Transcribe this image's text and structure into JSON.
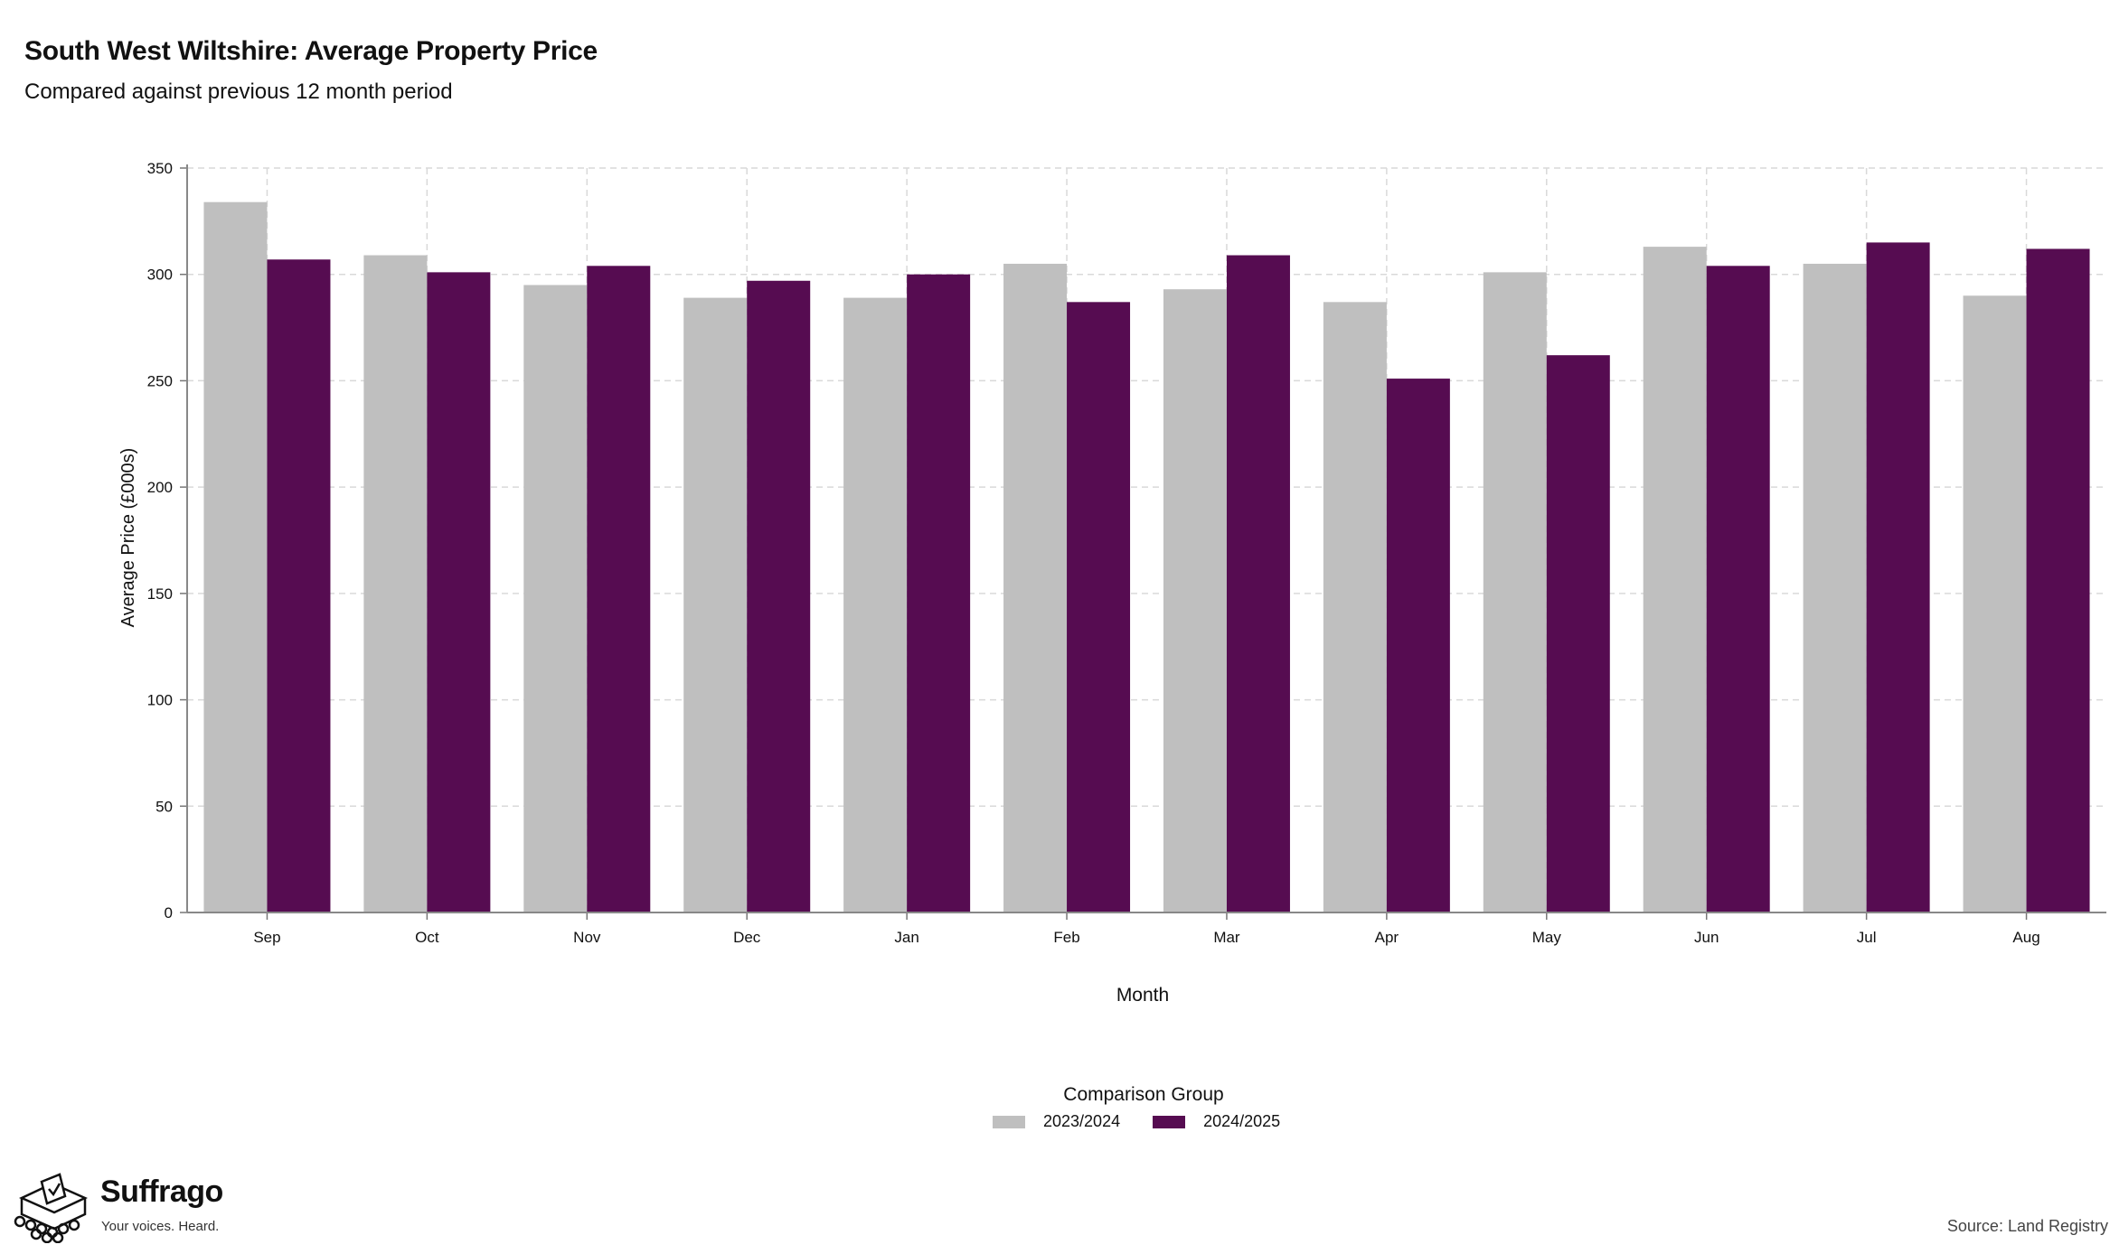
{
  "header": {
    "title": "South West Wiltshire: Average Property Price",
    "subtitle": "Compared against previous 12 month period"
  },
  "chart_data": {
    "type": "bar",
    "categories": [
      "Sep",
      "Oct",
      "Nov",
      "Dec",
      "Jan",
      "Feb",
      "Mar",
      "Apr",
      "May",
      "Jun",
      "Jul",
      "Aug"
    ],
    "series": [
      {
        "name": "2023/2024",
        "color": "#bfbfbf",
        "values": [
          334,
          309,
          295,
          289,
          289,
          305,
          293,
          287,
          301,
          313,
          305,
          290
        ]
      },
      {
        "name": "2024/2025",
        "color": "#560c51",
        "values": [
          307,
          301,
          304,
          297,
          300,
          287,
          309,
          251,
          262,
          304,
          315,
          312
        ]
      }
    ],
    "xlabel": "Month",
    "ylabel": "Average Price (£000s)",
    "ylim": [
      0,
      350
    ],
    "yticks": [
      0,
      50,
      100,
      150,
      200,
      250,
      300,
      350
    ],
    "grid": true,
    "legend_position": "bottom",
    "legend_title": "Comparison Group"
  },
  "footer": {
    "brand_name": "Suffrago",
    "brand_tagline": "Your voices. Heard.",
    "source": "Source: Land Registry"
  }
}
